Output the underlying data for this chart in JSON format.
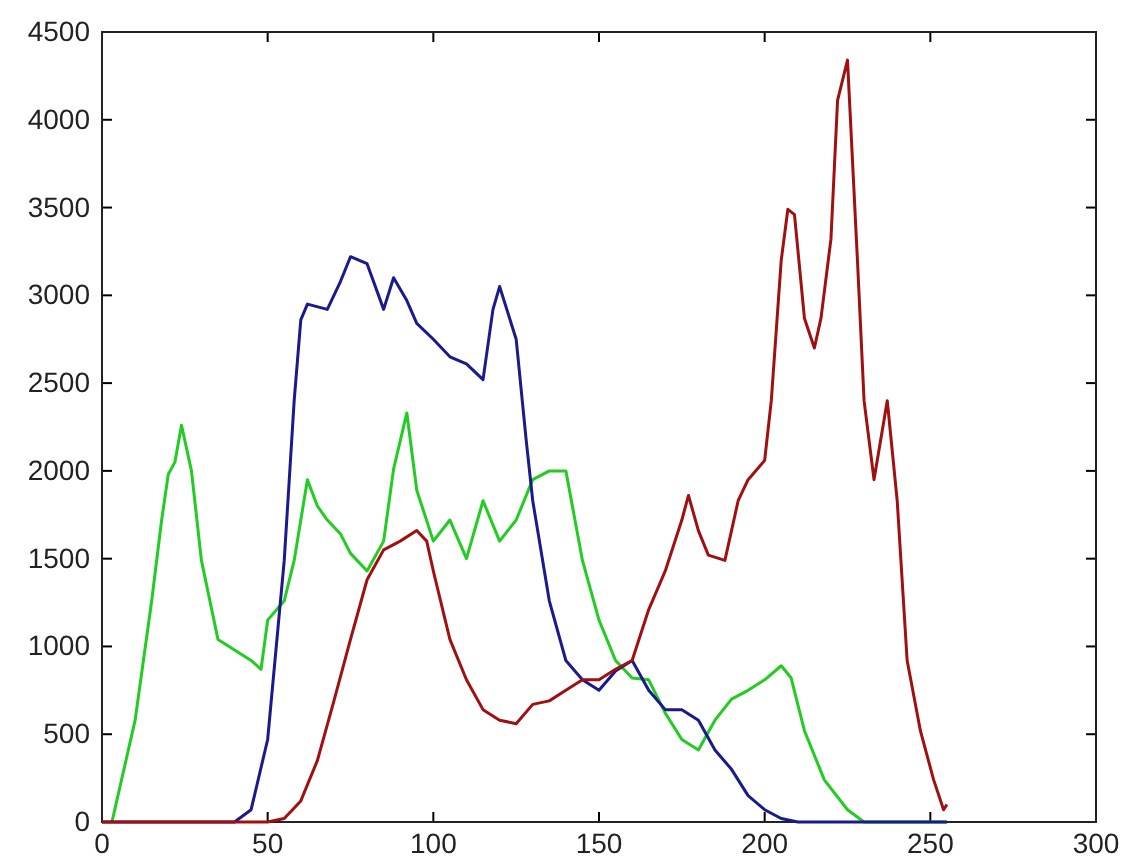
{
  "chart_data": {
    "type": "line",
    "xlim": [
      0,
      300
    ],
    "ylim": [
      0,
      4500
    ],
    "xticks": [
      0,
      50,
      100,
      150,
      200,
      250,
      300
    ],
    "yticks": [
      0,
      500,
      1000,
      1500,
      2000,
      2500,
      3000,
      3500,
      4000,
      4500
    ],
    "grid": false,
    "marker": "none",
    "line_style": "solid",
    "series": [
      {
        "color": "#22cc22",
        "x": [
          3,
          10,
          15,
          18,
          20,
          22,
          24,
          27,
          30,
          35,
          40,
          45,
          48,
          50,
          55,
          58,
          62,
          65,
          68,
          72,
          75,
          80,
          85,
          88,
          92,
          95,
          100,
          105,
          110,
          115,
          120,
          125,
          130,
          135,
          140,
          145,
          150,
          155,
          160,
          165,
          170,
          175,
          180,
          185,
          190,
          195,
          200,
          205,
          208,
          212,
          218,
          225,
          230,
          255
        ],
        "values": [
          0,
          580,
          1260,
          1720,
          1980,
          2050,
          2260,
          2000,
          1490,
          1040,
          980,
          920,
          870,
          1150,
          1260,
          1490,
          1950,
          1800,
          1720,
          1640,
          1530,
          1430,
          1600,
          2010,
          2330,
          1890,
          1600,
          1720,
          1500,
          1830,
          1600,
          1720,
          1950,
          2000,
          2000,
          1490,
          1150,
          920,
          820,
          810,
          620,
          470,
          410,
          580,
          700,
          750,
          810,
          890,
          820,
          520,
          240,
          70,
          0,
          0
        ]
      },
      {
        "color": "#1a1a8c",
        "x": [
          0,
          40,
          45,
          50,
          55,
          58,
          60,
          62,
          68,
          72,
          75,
          80,
          85,
          88,
          92,
          95,
          100,
          105,
          110,
          115,
          118,
          120,
          125,
          128,
          130,
          135,
          140,
          145,
          150,
          155,
          160,
          165,
          170,
          175,
          180,
          185,
          190,
          195,
          200,
          205,
          210,
          255
        ],
        "values": [
          0,
          0,
          70,
          470,
          1490,
          2400,
          2860,
          2950,
          2920,
          3080,
          3220,
          3180,
          2920,
          3100,
          2970,
          2840,
          2750,
          2650,
          2610,
          2520,
          2920,
          3050,
          2750,
          2180,
          1830,
          1260,
          920,
          810,
          750,
          860,
          920,
          750,
          640,
          640,
          580,
          410,
          300,
          150,
          70,
          20,
          0,
          0
        ]
      },
      {
        "color": "#a01010",
        "x": [
          0,
          50,
          55,
          60,
          65,
          70,
          75,
          80,
          85,
          90,
          95,
          98,
          100,
          105,
          110,
          115,
          120,
          125,
          130,
          135,
          140,
          145,
          150,
          155,
          160,
          165,
          170,
          175,
          177,
          180,
          183,
          188,
          192,
          195,
          200,
          202,
          205,
          207,
          209,
          212,
          215,
          217,
          220,
          222,
          225,
          228,
          230,
          233,
          237,
          240,
          243,
          247,
          251,
          254,
          255
        ],
        "values": [
          0,
          0,
          20,
          120,
          350,
          690,
          1040,
          1380,
          1550,
          1600,
          1660,
          1600,
          1430,
          1040,
          810,
          640,
          580,
          560,
          670,
          690,
          750,
          810,
          810,
          870,
          920,
          1210,
          1430,
          1720,
          1860,
          1660,
          1520,
          1490,
          1830,
          1950,
          2060,
          2400,
          3200,
          3490,
          3460,
          2870,
          2700,
          2870,
          3320,
          4110,
          4340,
          3200,
          2400,
          1950,
          2400,
          1830,
          920,
          520,
          240,
          70,
          100
        ]
      }
    ]
  }
}
